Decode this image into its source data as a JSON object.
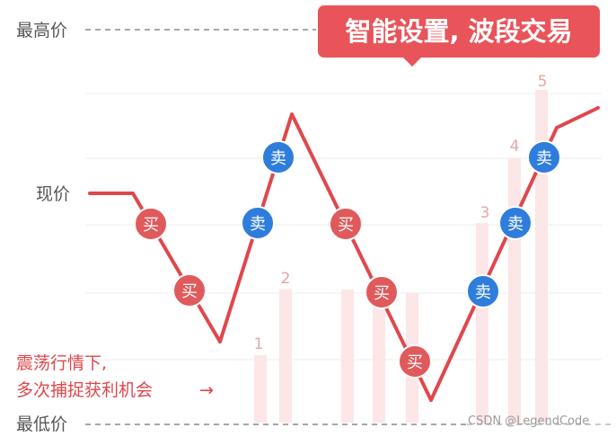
{
  "levels": {
    "high": "最高价",
    "current": "现价",
    "low": "最低价"
  },
  "banner": {
    "text": "智能设置, 波段交易"
  },
  "note": {
    "line1": "震荡行情下,",
    "line2": "多次捕捉获利机会",
    "arrow": "→"
  },
  "markers": {
    "buy": "买",
    "sell": "卖"
  },
  "step_numbers": [
    "1",
    "2",
    "3",
    "4",
    "5"
  ],
  "watermark": "CSDN @LegendCode",
  "colors": {
    "buy": "#e05a5c",
    "sell": "#2e7ddc",
    "line": "#e0474c",
    "banner": "#e8545a",
    "text": "#555555",
    "bar": "#fde6e7"
  }
}
